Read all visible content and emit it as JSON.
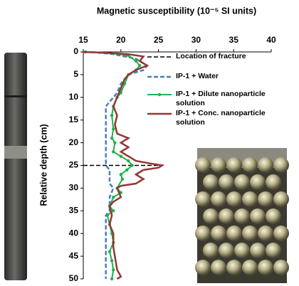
{
  "chart_data": {
    "type": "line",
    "title": "Magnetic susceptibility (10⁻⁵ SI units)",
    "y_label": "Relative depth (cm)",
    "xlim": [
      15,
      40
    ],
    "xticks": [
      15,
      20,
      25,
      30,
      35,
      40
    ],
    "ylim": [
      0,
      50
    ],
    "yticks": [
      0,
      5,
      10,
      15,
      20,
      25,
      30,
      35,
      40,
      45,
      50
    ],
    "y_inverted": true,
    "series": [
      {
        "name": "Location of fracture",
        "color": "#000000",
        "dash": true,
        "width": 1.5,
        "x": [
          15,
          25.4
        ],
        "y": [
          25,
          25
        ]
      },
      {
        "name": "IP-1 + Water",
        "color": "#4a7ebb",
        "dash": true,
        "width": 2.5,
        "x": [
          16,
          19,
          22,
          23.5,
          23,
          21,
          20,
          19.5,
          19,
          18.5,
          18,
          18,
          18,
          18.5,
          18.5,
          19,
          18.5,
          18.5,
          18,
          18
        ],
        "y": [
          0,
          0.5,
          1.5,
          3,
          4,
          5,
          7,
          9,
          10,
          11,
          12,
          13,
          25,
          26,
          29,
          30,
          32,
          35,
          36,
          50
        ]
      },
      {
        "name": "IP-1 + Dilute nanoparticle solution",
        "color": "#20b04b",
        "dash": false,
        "width": 2,
        "markers": true,
        "x": [
          15.3,
          19,
          21,
          22,
          22.5,
          22,
          21,
          20.5,
          20,
          19.5,
          19,
          18.8,
          19,
          18.8,
          19.2,
          19,
          20,
          21,
          21.5,
          20.8,
          20,
          20.2,
          19.5,
          20,
          19,
          18.5,
          19,
          18.2,
          18.5,
          18.8,
          19,
          18.5,
          18.8,
          19,
          18.8
        ],
        "y": [
          0,
          0.3,
          0.8,
          2,
          3,
          4,
          5,
          7,
          9,
          10,
          12,
          14,
          17,
          19,
          20,
          22,
          23,
          24,
          25,
          26,
          27,
          28,
          30,
          31,
          32,
          34,
          35,
          36,
          38,
          40,
          42,
          44,
          46,
          48,
          50
        ]
      },
      {
        "name": "IP-1 + Conc. nanoparticle solution",
        "color": "#943634",
        "dash": false,
        "width": 2.5,
        "x": [
          15,
          18,
          21,
          23,
          22.5,
          23.5,
          22,
          21,
          20.5,
          20,
          19.5,
          19,
          19.5,
          19.2,
          19.5,
          21,
          20,
          21,
          20,
          21,
          22,
          24,
          25.5,
          25,
          23,
          22,
          23,
          22,
          20,
          19.5,
          20,
          19,
          18.5,
          18.8,
          18.5,
          19,
          19,
          19.2,
          19.5,
          20,
          19.5
        ],
        "y": [
          0,
          0.2,
          0.5,
          1,
          2,
          3,
          4,
          5,
          6,
          8,
          10,
          12,
          14,
          16,
          18,
          19,
          20,
          21,
          22,
          23,
          24,
          24.6,
          25,
          25.5,
          26,
          27,
          28,
          29,
          29.5,
          30,
          32,
          33,
          34,
          36,
          38,
          40,
          43,
          45,
          48,
          49.5,
          50
        ]
      }
    ]
  }
}
